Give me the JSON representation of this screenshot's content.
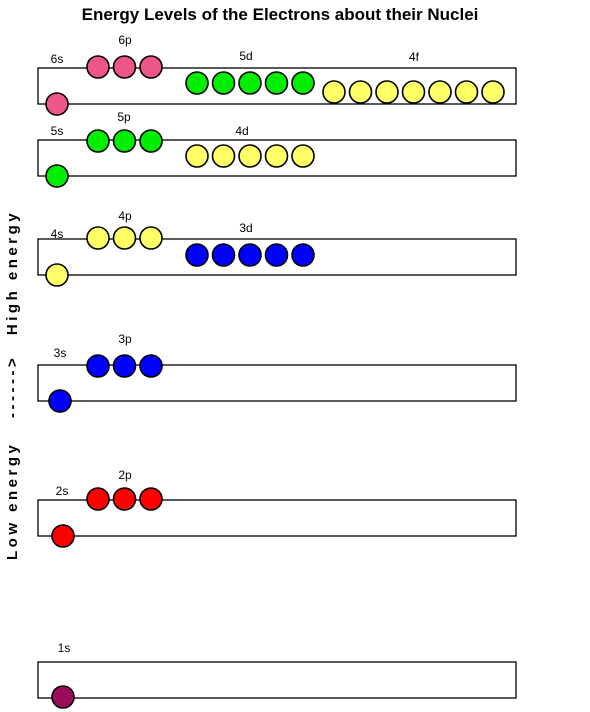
{
  "title": "Energy Levels of the Electrons about their Nuclei",
  "axis": {
    "low": "Low energy",
    "arrow": "------>",
    "high": "High energy"
  },
  "colors": {
    "magenta": "#9b0d5a",
    "red": "#ff0000",
    "blue": "#0000ff",
    "yellow": "#ffff66",
    "green": "#00ee00",
    "pink": "#ee5588"
  },
  "levels": [
    {
      "id": "n6",
      "orbitals": [
        {
          "name": "6s",
          "electrons": 1,
          "color": "pink"
        },
        {
          "name": "6p",
          "electrons": 3,
          "color": "pink"
        },
        {
          "name": "5d",
          "electrons": 5,
          "color": "green"
        },
        {
          "name": "4f",
          "electrons": 7,
          "color": "yellow"
        }
      ]
    },
    {
      "id": "n5",
      "orbitals": [
        {
          "name": "5s",
          "electrons": 1,
          "color": "green"
        },
        {
          "name": "5p",
          "electrons": 3,
          "color": "green"
        },
        {
          "name": "4d",
          "electrons": 5,
          "color": "yellow"
        }
      ]
    },
    {
      "id": "n4",
      "orbitals": [
        {
          "name": "4s",
          "electrons": 1,
          "color": "yellow"
        },
        {
          "name": "4p",
          "electrons": 3,
          "color": "yellow"
        },
        {
          "name": "3d",
          "electrons": 5,
          "color": "blue"
        }
      ]
    },
    {
      "id": "n3",
      "orbitals": [
        {
          "name": "3s",
          "electrons": 1,
          "color": "blue"
        },
        {
          "name": "3p",
          "electrons": 3,
          "color": "blue"
        }
      ]
    },
    {
      "id": "n2",
      "orbitals": [
        {
          "name": "2s",
          "electrons": 1,
          "color": "red"
        },
        {
          "name": "2p",
          "electrons": 3,
          "color": "red"
        }
      ]
    },
    {
      "id": "n1",
      "orbitals": [
        {
          "name": "1s",
          "electrons": 1,
          "color": "magenta"
        }
      ]
    }
  ]
}
